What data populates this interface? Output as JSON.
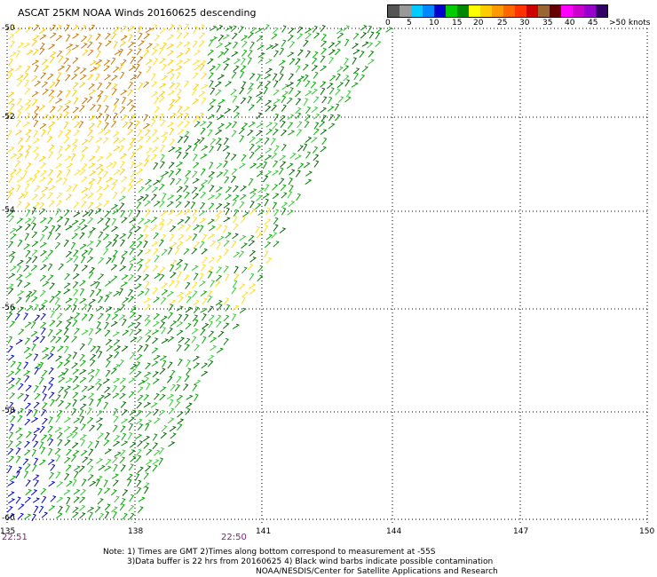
{
  "header": {
    "title": "ASCAT 25KM NOAA Winds 20160625 descending"
  },
  "colorbar": {
    "colors": [
      "#555555",
      "#999999",
      "#00ccff",
      "#0088ff",
      "#0000cc",
      "#00cc00",
      "#008800",
      "#ffff00",
      "#ffcc00",
      "#ff9900",
      "#ff6600",
      "#ff3300",
      "#cc0000",
      "#996633",
      "#660000",
      "#ff00ff",
      "#cc00cc",
      "#9900cc",
      "#330066"
    ],
    "tick_labels": [
      "0",
      "5",
      "10",
      "15",
      "20",
      "25",
      "30",
      "35",
      "40",
      "45",
      ">50 knots"
    ]
  },
  "map": {
    "lat_labels": [
      "-50",
      "-52",
      "-54",
      "-56",
      "-58",
      "-60"
    ],
    "lon_labels": [
      "135",
      "138",
      "141",
      "144",
      "147",
      "150"
    ],
    "time_labels": [
      "22:51",
      "22:50"
    ]
  },
  "notes": {
    "line1": "Note: 1) Times are GMT 2)Times along bottom correspond to measurement at -55S",
    "line2": "3)Data buffer is 22 hrs from 20160625 4) Black wind barbs indicate possible contamination",
    "line3": "NOAA/NESDIS/Center for Satellite Applications and Research"
  }
}
